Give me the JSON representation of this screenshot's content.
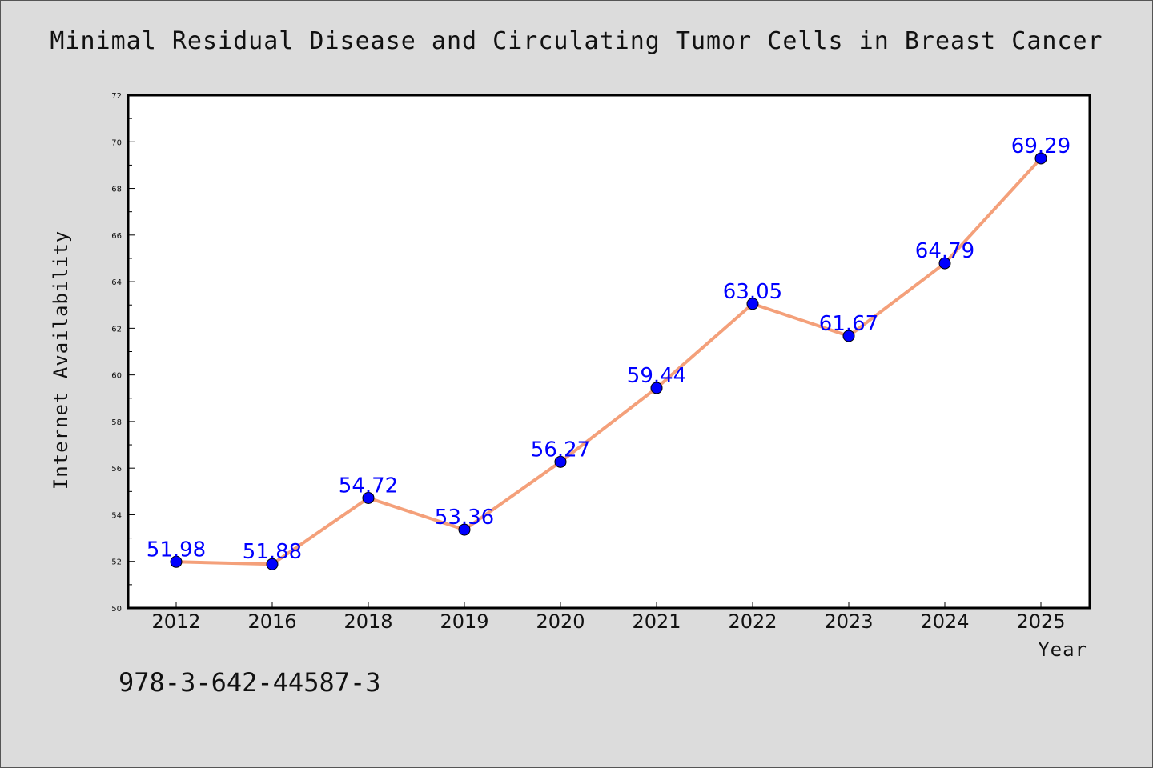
{
  "chart_data": {
    "type": "line",
    "title": "Minimal Residual Disease and Circulating Tumor Cells in Breast Cancer",
    "xlabel": "Year",
    "ylabel": "Internet Availability",
    "categories": [
      "2012",
      "2016",
      "2018",
      "2019",
      "2020",
      "2021",
      "2022",
      "2023",
      "2024",
      "2025"
    ],
    "values": [
      51.98,
      51.88,
      54.72,
      53.36,
      56.27,
      59.44,
      63.05,
      61.67,
      64.79,
      69.29
    ],
    "ylim": [
      50,
      72
    ],
    "yticks": [
      50,
      52,
      54,
      56,
      58,
      60,
      62,
      64,
      66,
      68,
      70,
      72
    ],
    "data_labels": [
      "51.98",
      "51.88",
      "54.72",
      "53.36",
      "56.27",
      "59.44",
      "63.05",
      "61.67",
      "64.79",
      "69.29"
    ],
    "grid": false,
    "colors": {
      "line": "#f4a07a",
      "marker": "#0000ff",
      "label": "#0000ff",
      "background": "#dcdcdc",
      "plot": "#ffffff"
    }
  },
  "footnote": "978-3-642-44587-3"
}
